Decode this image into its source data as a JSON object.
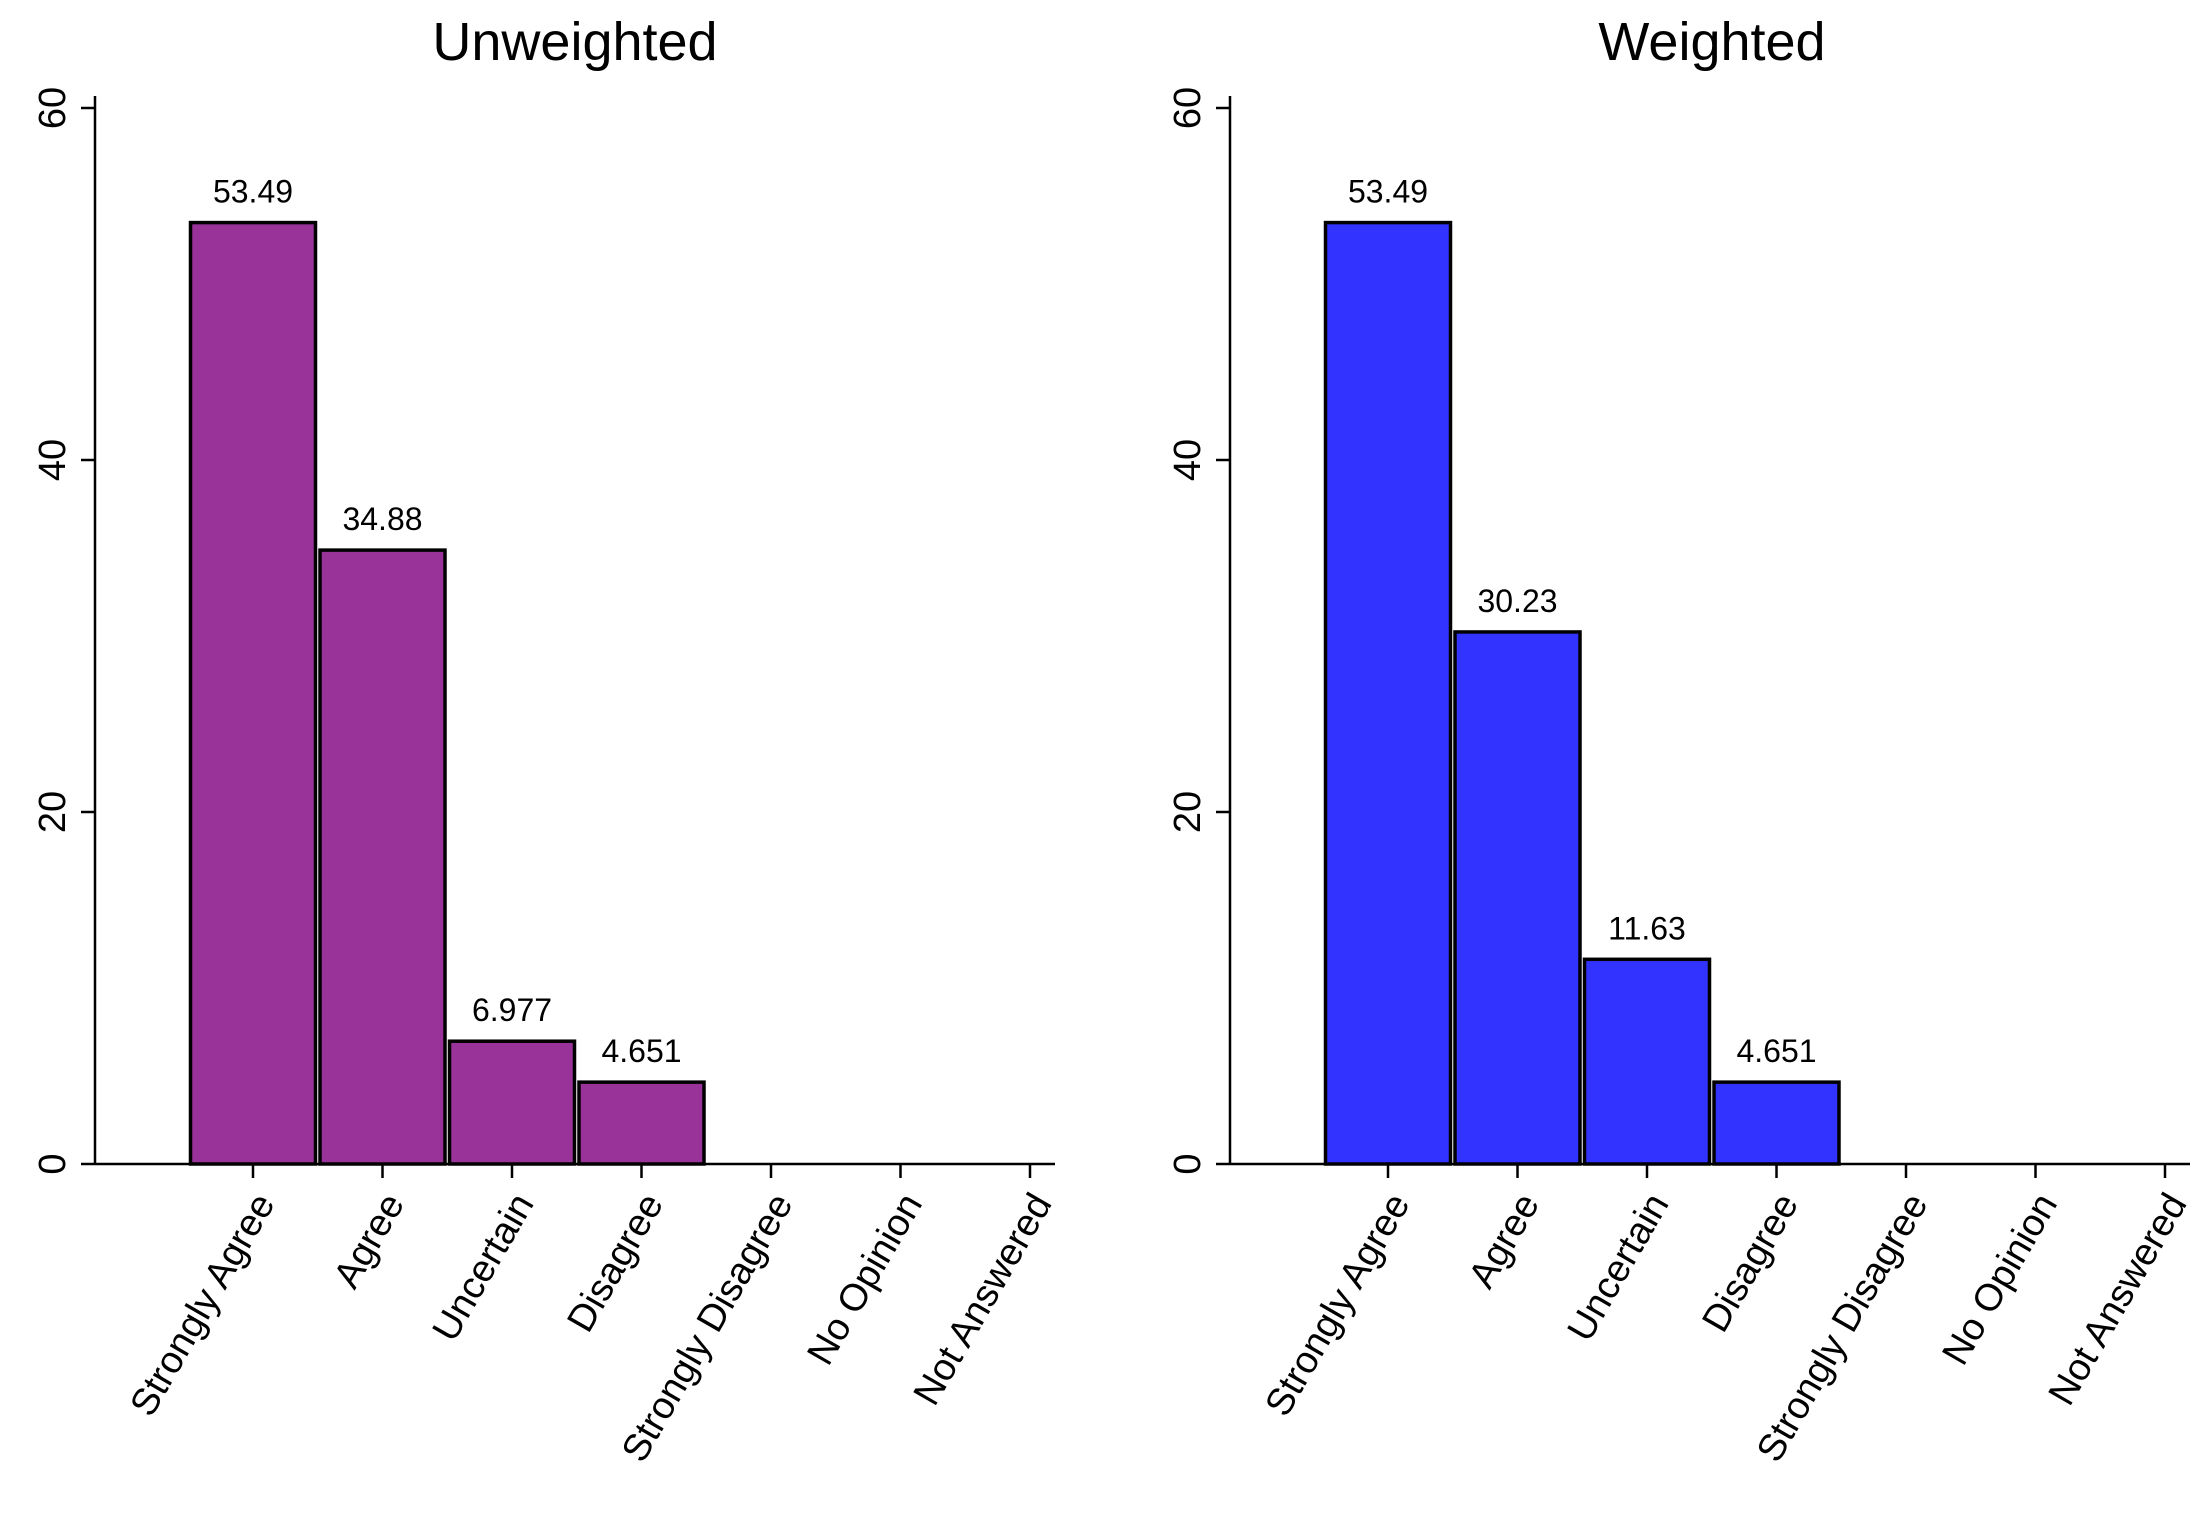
{
  "chart_data": [
    {
      "type": "bar",
      "title": "Unweighted",
      "xlabel": "",
      "ylabel": "",
      "ylim": [
        0,
        60
      ],
      "yticks": [
        0,
        20,
        40,
        60
      ],
      "grid": false,
      "bar_color": "#993399",
      "categories": [
        "Strongly Agree",
        "Agree",
        "Uncertain",
        "Disagree",
        "Strongly Disagree",
        "No Opinion",
        "Not Answered"
      ],
      "values": [
        53.49,
        34.88,
        6.977,
        4.651,
        0,
        0,
        0
      ],
      "data_labels": [
        "53.49",
        "34.88",
        "6.977",
        "4.651",
        "",
        "",
        ""
      ]
    },
    {
      "type": "bar",
      "title": "Weighted",
      "xlabel": "",
      "ylabel": "",
      "ylim": [
        0,
        60
      ],
      "yticks": [
        0,
        20,
        40,
        60
      ],
      "grid": false,
      "bar_color": "#3333ff",
      "categories": [
        "Strongly Agree",
        "Agree",
        "Uncertain",
        "Disagree",
        "Strongly Disagree",
        "No Opinion",
        "Not Answered"
      ],
      "values": [
        53.49,
        30.23,
        11.63,
        4.651,
        0,
        0,
        0
      ],
      "data_labels": [
        "53.49",
        "30.23",
        "11.63",
        "4.651",
        "",
        "",
        ""
      ]
    }
  ]
}
